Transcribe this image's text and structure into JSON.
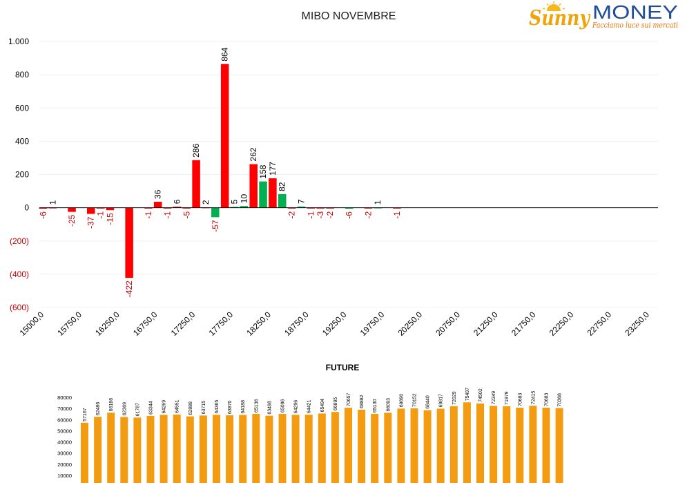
{
  "logo": {
    "brand_left": "Sunny",
    "brand_right": "MONEY",
    "tagline": "Facciamo luce sui mercati",
    "colors": {
      "sunny": "#f0a30a",
      "money": "#1f4e96",
      "tagline": "#e8730c"
    }
  },
  "chart_data": [
    {
      "type": "bar",
      "title": "MIBO NOVEMBRE",
      "xlabel": "",
      "ylabel": "",
      "ylim": [
        -600,
        1000
      ],
      "y_ticks": [
        {
          "value": 1000,
          "label": "1.000"
        },
        {
          "value": 800,
          "label": "800"
        },
        {
          "value": 600,
          "label": "600"
        },
        {
          "value": 400,
          "label": "400"
        },
        {
          "value": 200,
          "label": "200"
        },
        {
          "value": 0,
          "label": "0"
        },
        {
          "value": -200,
          "label": "(200)"
        },
        {
          "value": -400,
          "label": "(400)"
        },
        {
          "value": -600,
          "label": "(600)"
        }
      ],
      "x_tick_labels": [
        "15000,0",
        "15750,0",
        "16250,0",
        "16750,0",
        "17250,0",
        "17750,0",
        "18250,0",
        "18750,0",
        "19250,0",
        "19750,0",
        "20250,0",
        "20750,0",
        "21250,0",
        "21750,0",
        "22250,0",
        "22750,0",
        "23250,0"
      ],
      "colors": {
        "red": "#ff0000",
        "green": "#00b050",
        "negative_label": "#c00000",
        "positive_label": "#000000",
        "grid": "#f0f0f0"
      },
      "points": [
        {
          "slot": 0,
          "value": -6,
          "label": "-6",
          "color": "red"
        },
        {
          "slot": 1,
          "value": 1,
          "label": "1",
          "color": "red"
        },
        {
          "slot": 3,
          "value": -25,
          "label": "-25",
          "color": "red"
        },
        {
          "slot": 5,
          "value": -37,
          "label": "-37",
          "color": "red"
        },
        {
          "slot": 6,
          "value": -1,
          "label": "-1",
          "color": "red"
        },
        {
          "slot": 7,
          "value": -15,
          "label": "-15",
          "color": "red"
        },
        {
          "slot": 9,
          "value": -422,
          "label": "-422",
          "color": "red"
        },
        {
          "slot": 11,
          "value": -1,
          "label": "-1",
          "color": "red"
        },
        {
          "slot": 12,
          "value": 36,
          "label": "36",
          "color": "red"
        },
        {
          "slot": 13,
          "value": -1,
          "label": "-1",
          "color": "red"
        },
        {
          "slot": 14,
          "value": 6,
          "label": "6",
          "color": "red"
        },
        {
          "slot": 15,
          "value": -5,
          "label": "-5",
          "color": "red"
        },
        {
          "slot": 16,
          "value": 286,
          "label": "286",
          "color": "red"
        },
        {
          "slot": 17,
          "value": 2,
          "label": "2",
          "color": "red"
        },
        {
          "slot": 18,
          "value": -57,
          "label": "-57",
          "color": "green"
        },
        {
          "slot": 19,
          "value": 864,
          "label": "864",
          "color": "red"
        },
        {
          "slot": 20,
          "value": 5,
          "label": "5",
          "color": "green"
        },
        {
          "slot": 21,
          "value": 10,
          "label": "10",
          "color": "green"
        },
        {
          "slot": 22,
          "value": 262,
          "label": "262",
          "color": "red"
        },
        {
          "slot": 23,
          "value": 158,
          "label": "158",
          "color": "green"
        },
        {
          "slot": 24,
          "value": 177,
          "label": "177",
          "color": "red"
        },
        {
          "slot": 25,
          "value": 82,
          "label": "82",
          "color": "green"
        },
        {
          "slot": 26,
          "value": -2,
          "label": "-2",
          "color": "red"
        },
        {
          "slot": 27,
          "value": 7,
          "label": "7",
          "color": "green"
        },
        {
          "slot": 28,
          "value": -1,
          "label": "-1",
          "color": "red"
        },
        {
          "slot": 29,
          "value": -3,
          "label": "-3",
          "color": "red"
        },
        {
          "slot": 30,
          "value": -2,
          "label": "-2",
          "color": "red"
        },
        {
          "slot": 32,
          "value": -6,
          "label": "-6",
          "color": "green"
        },
        {
          "slot": 34,
          "value": -2,
          "label": "-2",
          "color": "red"
        },
        {
          "slot": 35,
          "value": 1,
          "label": "1",
          "color": "green"
        },
        {
          "slot": 37,
          "value": -1,
          "label": "-1",
          "color": "red"
        }
      ]
    },
    {
      "type": "bar",
      "title": "FUTURE",
      "xlabel": "",
      "ylabel": "",
      "ylim": [
        0,
        80000
      ],
      "y_ticks": [
        {
          "value": 80000,
          "label": "80000"
        },
        {
          "value": 70000,
          "label": "70000"
        },
        {
          "value": 60000,
          "label": "60000"
        },
        {
          "value": 50000,
          "label": "50000"
        },
        {
          "value": 40000,
          "label": "40000"
        },
        {
          "value": 30000,
          "label": "30000"
        },
        {
          "value": 20000,
          "label": "20000"
        },
        {
          "value": 10000,
          "label": "10000"
        }
      ],
      "colors": {
        "bar": "#f39c12"
      },
      "values": [
        57167,
        62486,
        66166,
        62369,
        61787,
        63344,
        64269,
        64551,
        62888,
        63715,
        64365,
        63870,
        64188,
        65136,
        63498,
        65096,
        64296,
        64421,
        65494,
        66895,
        70657,
        68882,
        65130,
        66093,
        69890,
        70152,
        68440,
        69817,
        72029,
        75497,
        74502,
        72349,
        71979,
        70683,
        72415,
        70683,
        70368
      ]
    }
  ]
}
